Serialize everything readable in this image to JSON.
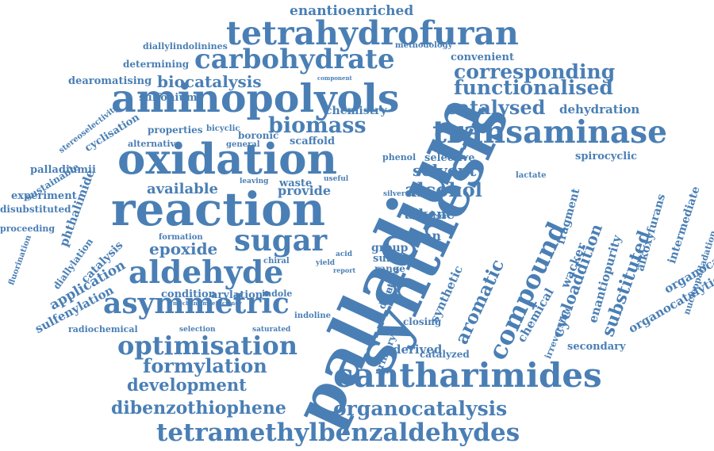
{
  "color": "#4a7fb5",
  "words": [
    {
      "text": "enantioenriched"
    },
    {
      "text": "tetrahydrofuran"
    },
    {
      "text": "diallylindolinines"
    },
    {
      "text": "methodology"
    },
    {
      "text": "carbohydrate"
    },
    {
      "text": "convenient"
    },
    {
      "text": "determining"
    },
    {
      "text": "corresponding"
    },
    {
      "text": "dearomatising"
    },
    {
      "text": "biocatalysis"
    },
    {
      "text": "component"
    },
    {
      "text": "functionalised"
    },
    {
      "text": "sulfonium"
    },
    {
      "text": "aminopolyols"
    },
    {
      "text": "stereoselectivity"
    },
    {
      "text": "chemistry"
    },
    {
      "text": "catalysed"
    },
    {
      "text": "dehydration"
    },
    {
      "text": "cyclisation"
    },
    {
      "text": "biomass"
    },
    {
      "text": "properties"
    },
    {
      "text": "bicyclic"
    },
    {
      "text": "boronic"
    },
    {
      "text": "transaminase"
    },
    {
      "text": "alternative"
    },
    {
      "text": "general"
    },
    {
      "text": "scaffold"
    },
    {
      "text": "phenol"
    },
    {
      "text": "selective"
    },
    {
      "text": "spirocyclic"
    },
    {
      "text": "oxidation"
    },
    {
      "text": "palladiumii"
    },
    {
      "text": "sustainable"
    },
    {
      "text": "solvent"
    },
    {
      "text": "lactate"
    },
    {
      "text": "available"
    },
    {
      "text": "leaving"
    },
    {
      "text": "waste"
    },
    {
      "text": "useful"
    },
    {
      "text": "experiment"
    },
    {
      "text": "provide"
    },
    {
      "text": "alcohol"
    },
    {
      "text": "silver"
    },
    {
      "text": "disubstituted"
    },
    {
      "text": "reaction"
    },
    {
      "text": "fragment"
    },
    {
      "text": "intermediate"
    },
    {
      "text": "alkene"
    },
    {
      "text": "proceeding"
    },
    {
      "text": "precursor"
    },
    {
      "text": "alkoxyfurans"
    },
    {
      "text": "phthalimide"
    },
    {
      "text": "furan"
    },
    {
      "text": "fluorination"
    },
    {
      "text": "diallylation"
    },
    {
      "text": "formation"
    },
    {
      "text": "group"
    },
    {
      "text": "sugar"
    },
    {
      "text": "epoxide"
    },
    {
      "text": "catalysis"
    },
    {
      "text": "nucleopalladation"
    },
    {
      "text": "application"
    },
    {
      "text": "chiral"
    },
    {
      "text": "sulfur"
    },
    {
      "text": "yield"
    },
    {
      "text": "acid"
    },
    {
      "text": "sulfenylation"
    },
    {
      "text": "aldehyde"
    },
    {
      "text": "range"
    },
    {
      "text": "report"
    },
    {
      "text": "synthesis"
    },
    {
      "text": "aromatic"
    },
    {
      "text": "cycloaddition"
    },
    {
      "text": "enantiopurity"
    },
    {
      "text": "substituted"
    },
    {
      "text": "wacker"
    },
    {
      "text": "compound"
    },
    {
      "text": "organocatalytic"
    },
    {
      "text": "condition"
    },
    {
      "text": "arylation"
    },
    {
      "text": "indole"
    },
    {
      "text": "mechanism"
    },
    {
      "text": "efficiency"
    },
    {
      "text": "asymmetric"
    },
    {
      "text": "diene"
    },
    {
      "text": "acetate"
    },
    {
      "text": "synthetic"
    },
    {
      "text": "organocatalytic"
    },
    {
      "text": "radiochemical"
    },
    {
      "text": "selection"
    },
    {
      "text": "saturated"
    },
    {
      "text": "indoline"
    },
    {
      "text": "closing"
    },
    {
      "text": "chemical"
    },
    {
      "text": "irreversible"
    },
    {
      "text": "secondary"
    },
    {
      "text": "optimisation"
    },
    {
      "text": "primary"
    },
    {
      "text": "derived"
    },
    {
      "text": "formylation"
    },
    {
      "text": "catalyzed"
    },
    {
      "text": "development"
    },
    {
      "text": "cantharimides"
    },
    {
      "text": "palladium"
    },
    {
      "text": "dibenzothiophene"
    },
    {
      "text": "organocatalysis"
    },
    {
      "text": "tetramethylbenzaldehydes"
    }
  ]
}
